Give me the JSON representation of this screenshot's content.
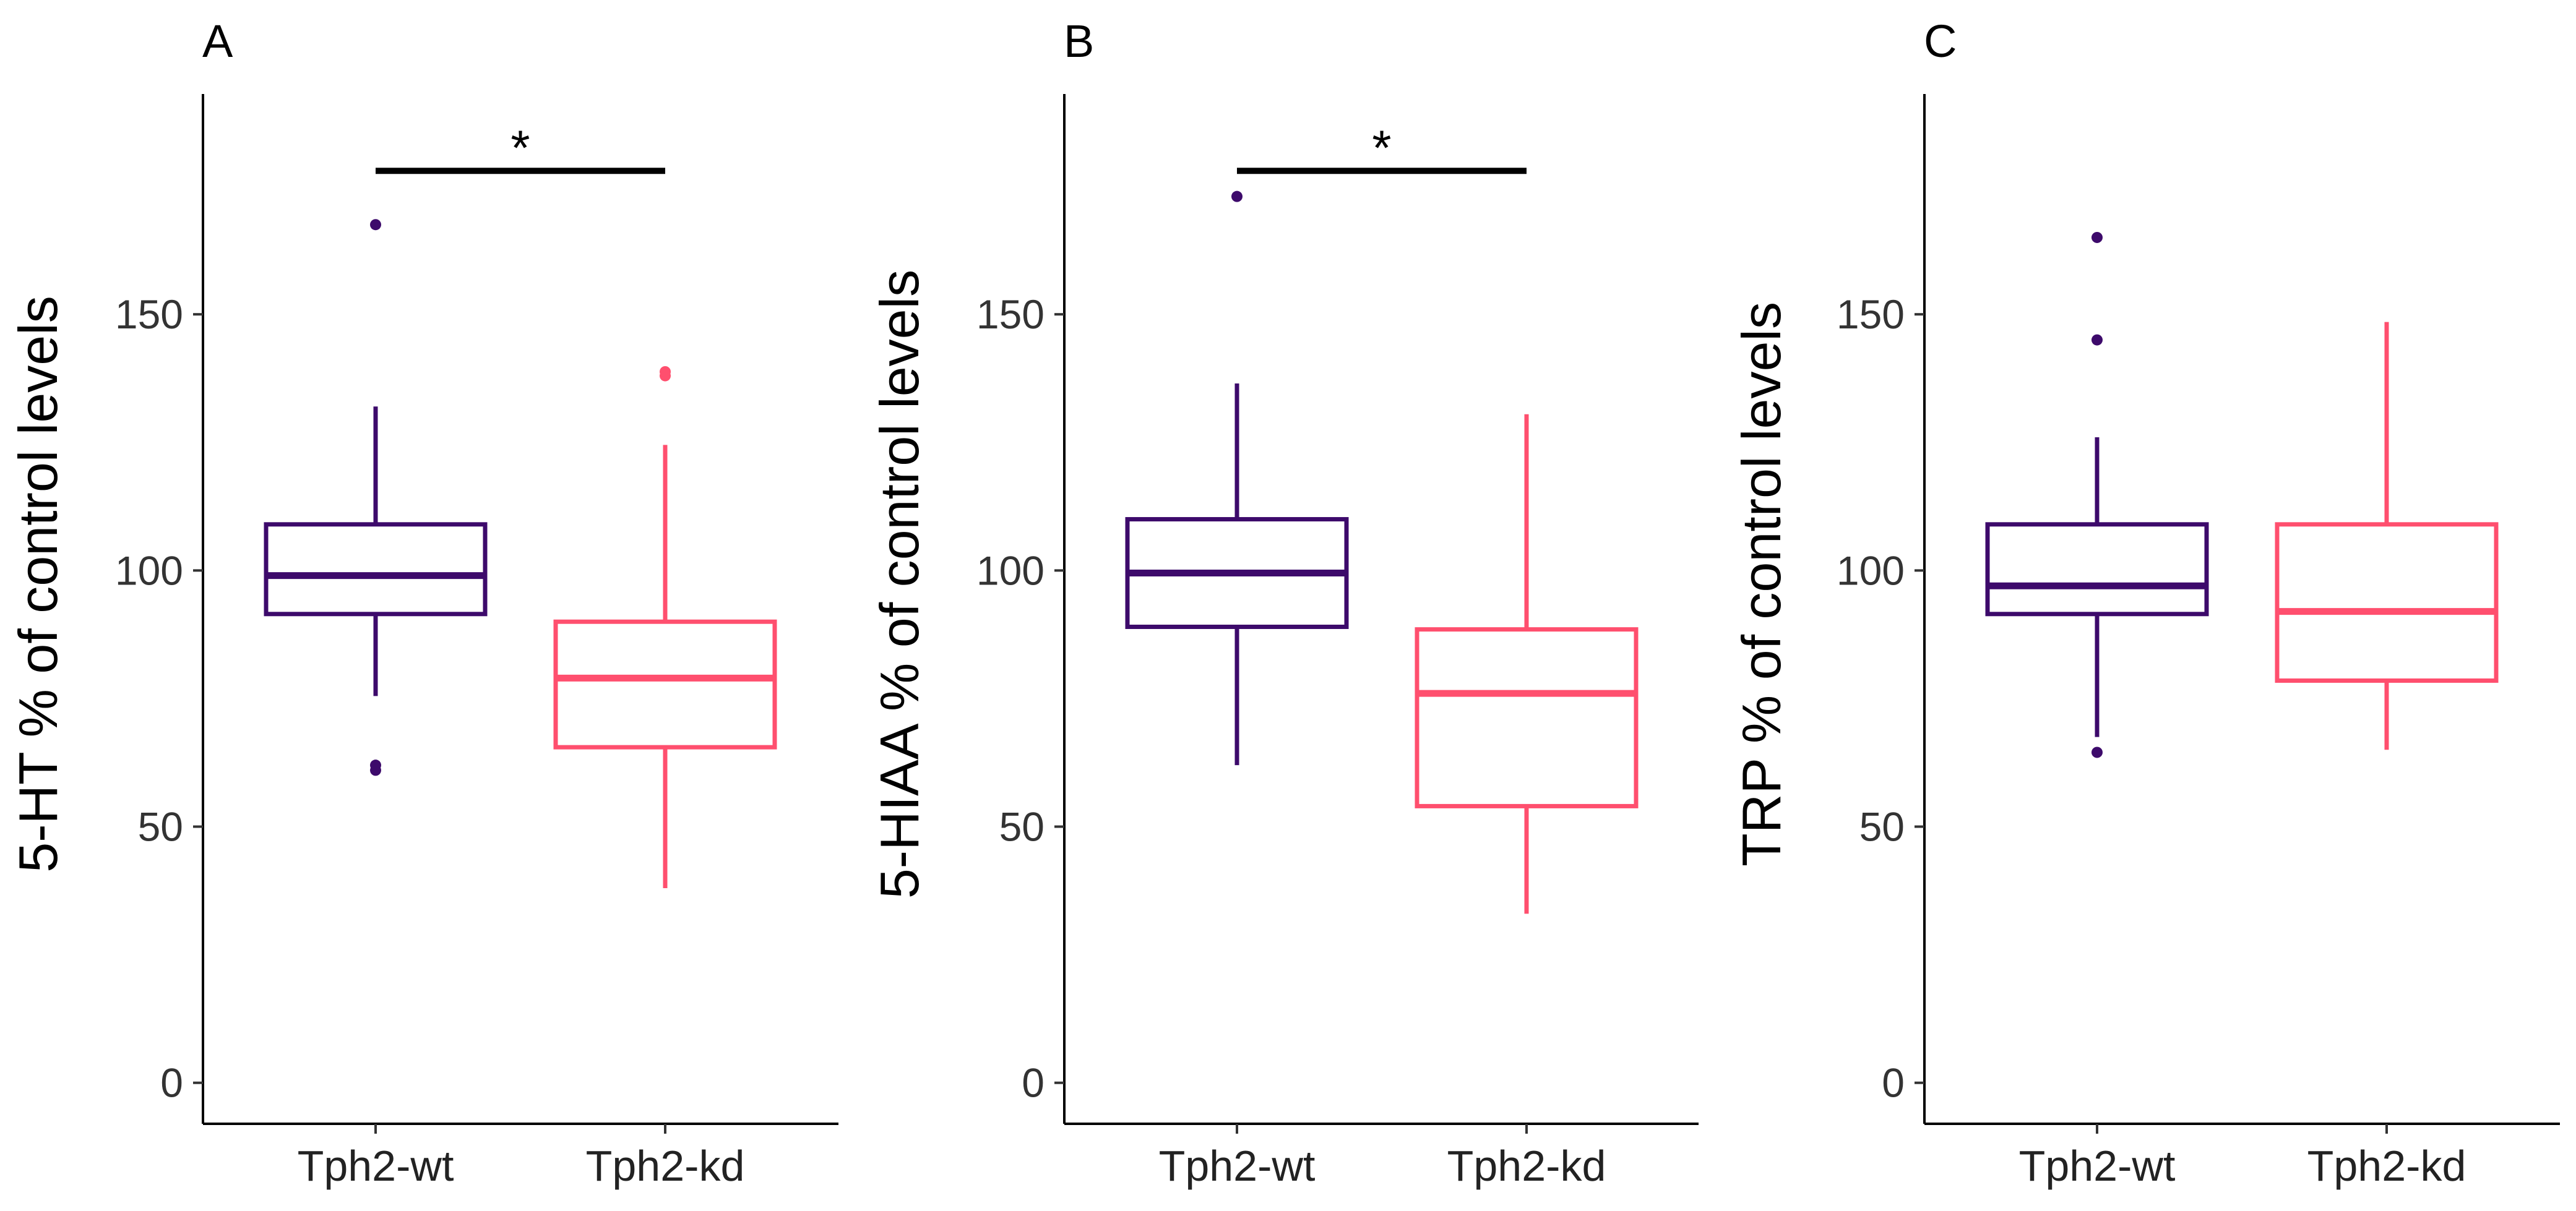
{
  "chart_data": [
    {
      "type": "box",
      "panel_label": "A",
      "ylabel": "5-HT % of control levels",
      "ylim": [
        -8,
        193
      ],
      "yticks": [
        0,
        50,
        100,
        150
      ],
      "ytick_labels": [
        "0",
        "50",
        "100",
        "150"
      ],
      "categories": [
        "Tph2-wt",
        "Tph2-kd"
      ],
      "boxes": [
        {
          "group": "Tph2-wt",
          "color": "#3d0a6b",
          "whisker_low": 75.5,
          "q1": 91.5,
          "median": 99,
          "q3": 109,
          "whisker_high": 132,
          "outliers": [
            167.5,
            62,
            61
          ]
        },
        {
          "group": "Tph2-kd",
          "color": "#ff4f6e",
          "whisker_low": 38,
          "q1": 65.5,
          "median": 79,
          "q3": 90,
          "whisker_high": 124.5,
          "outliers": [
            138,
            138.8
          ]
        }
      ],
      "significance": {
        "label": "*",
        "between": [
          "Tph2-wt",
          "Tph2-kd"
        ],
        "y": 178
      }
    },
    {
      "type": "box",
      "panel_label": "B",
      "ylabel": "5-HIAA % of control levels",
      "ylim": [
        -8,
        193
      ],
      "yticks": [
        0,
        50,
        100,
        150
      ],
      "ytick_labels": [
        "0",
        "50",
        "100",
        "150"
      ],
      "categories": [
        "Tph2-wt",
        "Tph2-kd"
      ],
      "boxes": [
        {
          "group": "Tph2-wt",
          "color": "#3d0a6b",
          "whisker_low": 62,
          "q1": 89,
          "median": 99.5,
          "q3": 110,
          "whisker_high": 136.5,
          "outliers": [
            173
          ]
        },
        {
          "group": "Tph2-kd",
          "color": "#ff4f6e",
          "whisker_low": 33,
          "q1": 54,
          "median": 76,
          "q3": 88.5,
          "whisker_high": 130.5,
          "outliers": []
        }
      ],
      "significance": {
        "label": "*",
        "between": [
          "Tph2-wt",
          "Tph2-kd"
        ],
        "y": 178
      }
    },
    {
      "type": "box",
      "panel_label": "C",
      "ylabel": "TRP % of control levels",
      "ylim": [
        -8,
        193
      ],
      "yticks": [
        0,
        50,
        100,
        150
      ],
      "ytick_labels": [
        "0",
        "50",
        "100",
        "150"
      ],
      "categories": [
        "Tph2-wt",
        "Tph2-kd"
      ],
      "boxes": [
        {
          "group": "Tph2-wt",
          "color": "#3d0a6b",
          "whisker_low": 67.5,
          "q1": 91.5,
          "median": 97,
          "q3": 109,
          "whisker_high": 126,
          "outliers": [
            165,
            145,
            64.5
          ]
        },
        {
          "group": "Tph2-kd",
          "color": "#ff4f6e",
          "whisker_low": 65,
          "q1": 78.5,
          "median": 92,
          "q3": 109,
          "whisker_high": 148.5,
          "outliers": []
        }
      ],
      "significance": null
    }
  ]
}
